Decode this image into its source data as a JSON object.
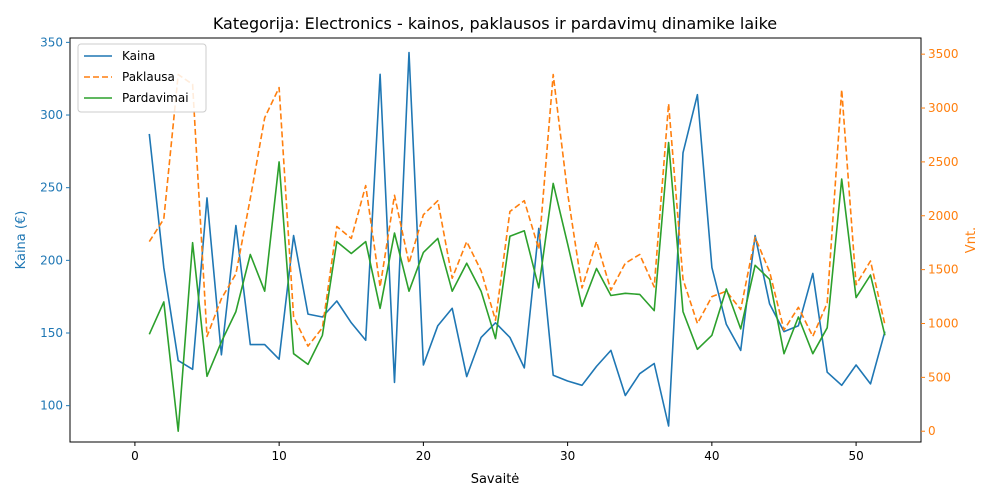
{
  "chart_data": {
    "type": "line",
    "title": "Kategorija: Electronics - kainos, paklausos ir pardavimų dinamike laike",
    "xlabel": "Savaitė",
    "ylabel_left": "Kaina (€)",
    "ylabel_right": "Vnt.",
    "xlim": [
      -4.5,
      54.5
    ],
    "ylim_left": [
      75,
      353
    ],
    "ylim_right": [
      -100,
      3650
    ],
    "x_ticks": [
      0,
      10,
      20,
      30,
      40,
      50
    ],
    "y_ticks_left": [
      100,
      150,
      200,
      250,
      300,
      350
    ],
    "y_ticks_right": [
      0,
      500,
      1000,
      1500,
      2000,
      2500,
      3000,
      3500
    ],
    "grid": false,
    "legend_position": "top-left",
    "x": [
      1,
      2,
      3,
      4,
      5,
      6,
      7,
      8,
      9,
      10,
      11,
      12,
      13,
      14,
      15,
      16,
      17,
      18,
      19,
      20,
      21,
      22,
      23,
      24,
      25,
      26,
      27,
      28,
      29,
      30,
      31,
      32,
      33,
      34,
      35,
      36,
      37,
      38,
      39,
      40,
      41,
      42,
      43,
      44,
      45,
      46,
      47,
      48,
      49,
      50,
      51,
      52
    ],
    "series": [
      {
        "name": "Kaina",
        "axis": "left",
        "color": "#1f77b4",
        "dash": "solid",
        "values": [
          287,
          195,
          131,
          125,
          243,
          135,
          224,
          142,
          142,
          132,
          217,
          163,
          161,
          172,
          157,
          145,
          328,
          116,
          343,
          128,
          155,
          167,
          120,
          147,
          157,
          147,
          126,
          222,
          121,
          117,
          114,
          127,
          138,
          107,
          122,
          129,
          86,
          274,
          314,
          195,
          156,
          138,
          217,
          170,
          151,
          155,
          191,
          123,
          114,
          128,
          115,
          151
        ]
      },
      {
        "name": "Paklausa",
        "axis": "right",
        "color": "#ff7f0e",
        "dash": "dashed",
        "values": [
          1760,
          1970,
          3310,
          3220,
          880,
          1230,
          1460,
          2160,
          2910,
          3190,
          1060,
          790,
          960,
          1900,
          1790,
          2280,
          1340,
          2190,
          1560,
          2010,
          2140,
          1420,
          1760,
          1490,
          1030,
          2040,
          2140,
          1690,
          3310,
          2210,
          1330,
          1760,
          1310,
          1560,
          1640,
          1340,
          3040,
          1410,
          1000,
          1250,
          1300,
          1130,
          1800,
          1480,
          940,
          1150,
          880,
          1190,
          3170,
          1360,
          1580,
          990
        ]
      },
      {
        "name": "Pardavimai",
        "axis": "right",
        "color": "#2ca02c",
        "dash": "solid",
        "values": [
          900,
          1200,
          0,
          1750,
          510,
          830,
          1110,
          1640,
          1300,
          2500,
          720,
          620,
          890,
          1760,
          1650,
          1760,
          1140,
          1840,
          1300,
          1660,
          1790,
          1300,
          1560,
          1300,
          860,
          1810,
          1860,
          1330,
          2300,
          1740,
          1160,
          1510,
          1260,
          1280,
          1270,
          1120,
          2680,
          1110,
          760,
          890,
          1320,
          950,
          1540,
          1410,
          720,
          1060,
          720,
          960,
          2340,
          1240,
          1450,
          890
        ]
      }
    ]
  }
}
